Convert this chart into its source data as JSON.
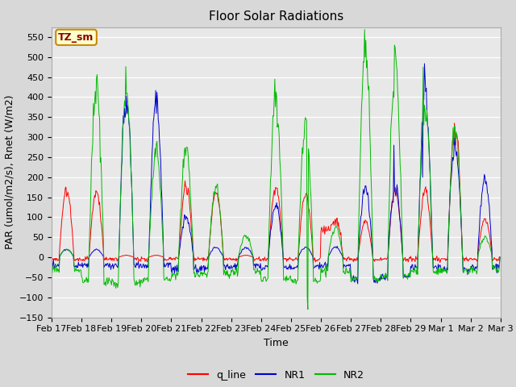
{
  "title": "Floor Solar Radiations",
  "xlabel": "Time",
  "ylabel": "PAR (umol/m2/s), Rnet (W/m2)",
  "ylim": [
    -150,
    575
  ],
  "yticks": [
    -150,
    -100,
    -50,
    0,
    50,
    100,
    150,
    200,
    250,
    300,
    350,
    400,
    450,
    500,
    550
  ],
  "xtick_labels": [
    "Feb 17",
    "Feb 18",
    "Feb 19",
    "Feb 20",
    "Feb 21",
    "Feb 22",
    "Feb 23",
    "Feb 24",
    "Feb 25",
    "Feb 26",
    "Feb 27",
    "Feb 28",
    "Feb 29",
    "Mar 1",
    "Mar 2",
    "Mar 3"
  ],
  "legend_labels": [
    "q_line",
    "NR1",
    "NR2"
  ],
  "legend_colors": [
    "#ff0000",
    "#0000cc",
    "#00bb00"
  ],
  "line_colors": [
    "#ff0000",
    "#0000cc",
    "#00bb00"
  ],
  "figure_bg_color": "#d8d8d8",
  "plot_bg_color": "#e8e8e8",
  "annotation_text": "TZ_sm",
  "annotation_bg": "#ffffcc",
  "annotation_border": "#cc8800",
  "annotation_text_color": "#880000",
  "title_fontsize": 11,
  "axis_label_fontsize": 9,
  "tick_fontsize": 8,
  "legend_fontsize": 9
}
